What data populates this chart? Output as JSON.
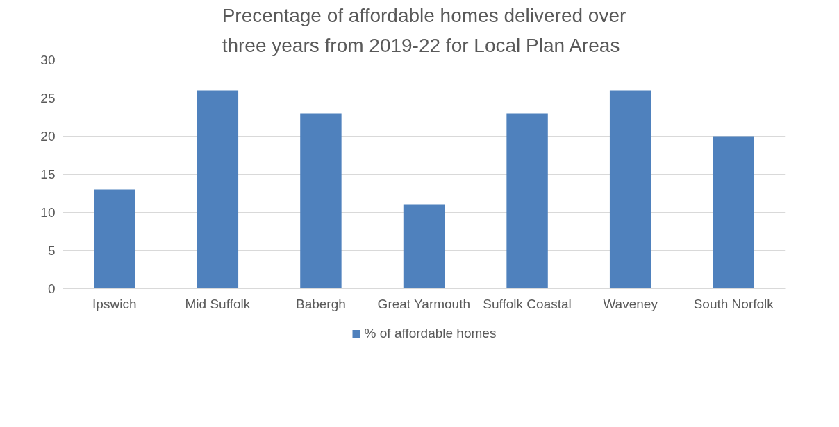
{
  "chart_data": {
    "type": "bar",
    "title": "Precentage of affordable homes delivered over three years from 2019-22 for Local Plan Areas",
    "categories": [
      "Ipswich",
      "Mid Suffolk",
      "Babergh",
      "Great Yarmouth",
      "Suffolk Coastal",
      "Waveney",
      "South Norfolk"
    ],
    "series": [
      {
        "name": "% of affordable homes",
        "color": "#4f81bd",
        "values": [
          13,
          26,
          23,
          11,
          23,
          26,
          20
        ]
      }
    ],
    "ylim": [
      0,
      30
    ],
    "yticks": [
      0,
      5,
      10,
      15,
      20,
      25,
      30
    ],
    "grid": "y",
    "legend": "bottom"
  }
}
